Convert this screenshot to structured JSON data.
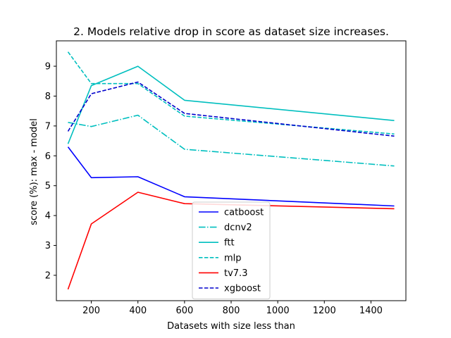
{
  "chart_data": {
    "type": "line",
    "title": "2. Models relative drop in score as dataset size increases.",
    "xlabel": "Datasets with size less than",
    "ylabel": "score (%): max - model",
    "xlim": [
      50,
      1550
    ],
    "ylim": [
      1.15,
      9.85
    ],
    "xticks": [
      200,
      400,
      600,
      800,
      1000,
      1200,
      1400
    ],
    "yticks": [
      2,
      3,
      4,
      5,
      6,
      7,
      8,
      9
    ],
    "grid": false,
    "legend_position": "lower center",
    "x": [
      100,
      200,
      400,
      600,
      1500
    ],
    "series": [
      {
        "name": "catboost",
        "color": "#0000ff",
        "dash": "solid",
        "values": [
          6.3,
          5.27,
          5.3,
          4.63,
          4.32
        ]
      },
      {
        "name": "dcnv2",
        "color": "#00bfbf",
        "dash": "dashdot",
        "values": [
          7.12,
          6.98,
          7.36,
          6.22,
          5.66
        ]
      },
      {
        "name": "ftt",
        "color": "#00bfbf",
        "dash": "solid",
        "values": [
          6.4,
          8.35,
          9.0,
          7.86,
          7.18
        ]
      },
      {
        "name": "mlp",
        "color": "#00bfbf",
        "dash": "dashed",
        "values": [
          9.48,
          8.42,
          8.42,
          7.33,
          6.73
        ]
      },
      {
        "name": "tv7.3",
        "color": "#ff0000",
        "dash": "solid",
        "values": [
          1.53,
          3.72,
          4.78,
          4.4,
          4.23
        ]
      },
      {
        "name": "xgboost",
        "color": "#0000cc",
        "dash": "dashed",
        "values": [
          6.82,
          8.08,
          8.47,
          7.42,
          6.66
        ]
      }
    ]
  }
}
